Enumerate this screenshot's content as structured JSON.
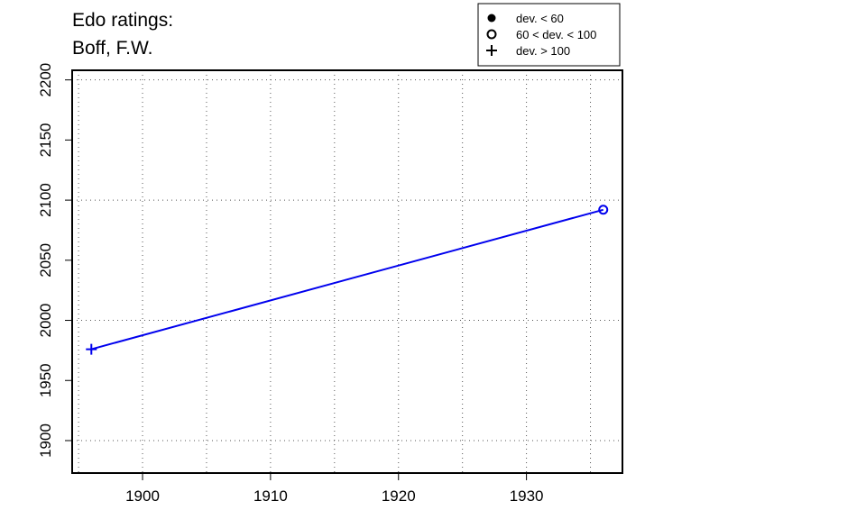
{
  "chart_data": {
    "type": "line",
    "title_lines": [
      "Edo ratings:",
      "Boff, F.W."
    ],
    "xlabel": "",
    "ylabel": "",
    "xlim": [
      1894.5,
      1937.5
    ],
    "ylim": [
      1873,
      2208
    ],
    "x_ticks": [
      1900,
      1910,
      1920,
      1930
    ],
    "y_ticks": [
      1900,
      1950,
      2000,
      2050,
      2100,
      2150,
      2200
    ],
    "x_minor_grid": [
      1895,
      1900,
      1905,
      1910,
      1915,
      1920,
      1925,
      1930,
      1935
    ],
    "y_grid": [
      1900,
      2000,
      2100,
      2200
    ],
    "grid": true,
    "legend_position": "top-right",
    "legend": [
      {
        "symbol": "filled-circle",
        "label": "dev. < 60"
      },
      {
        "symbol": "open-circle",
        "label": "60 < dev. < 100"
      },
      {
        "symbol": "plus",
        "label": "dev. > 100"
      }
    ],
    "series": [
      {
        "color": "#0000ee",
        "points": [
          {
            "x": 1896,
            "y": 1976,
            "marker": "plus"
          },
          {
            "x": 1936,
            "y": 2092,
            "marker": "open-circle"
          }
        ]
      }
    ]
  }
}
